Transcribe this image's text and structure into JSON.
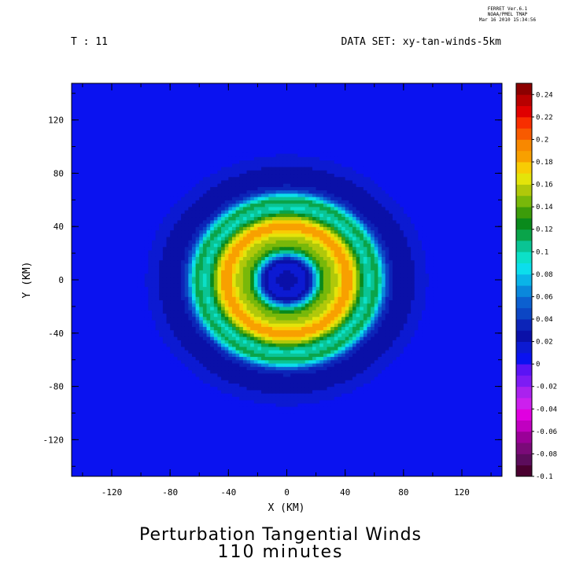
{
  "header": {
    "stamp_line1": "FERRET  Ver.6.1",
    "stamp_line2": "NOAA/PMEL TMAP",
    "stamp_line3": "Mar 16 2010 15:34:56",
    "time_label": "T : 11",
    "dataset_label": "DATA SET: xy-tan-winds-5km"
  },
  "titles": {
    "line1": "Perturbation Tangential Winds",
    "line2": "110 minutes"
  },
  "chart_data": {
    "type": "heatmap",
    "xlabel": "X (KM)",
    "ylabel": "Y (KM)",
    "xlim": [
      -147.5,
      147.5
    ],
    "ylim": [
      -147.5,
      147.5
    ],
    "xticks": [
      -120,
      -80,
      -40,
      0,
      40,
      80,
      120
    ],
    "yticks": [
      -120,
      -80,
      -40,
      0,
      40,
      80,
      120
    ],
    "xtick_labels": [
      "-120",
      "-80",
      "-40",
      "0",
      "40",
      "80",
      "120"
    ],
    "ytick_labels": [
      "-120",
      "-80",
      "-40",
      "0",
      "40",
      "80",
      "120"
    ],
    "grid": false,
    "colorbar": {
      "levels": [
        -0.1,
        -0.09,
        -0.08,
        -0.07,
        -0.06,
        -0.05,
        -0.04,
        -0.03,
        -0.02,
        -0.01,
        0,
        0.01,
        0.02,
        0.03,
        0.04,
        0.05,
        0.06,
        0.07,
        0.08,
        0.09,
        0.1,
        0.11,
        0.12,
        0.13,
        0.14,
        0.15,
        0.16,
        0.17,
        0.18,
        0.19,
        0.2,
        0.21,
        0.22,
        0.23,
        0.24,
        0.25
      ],
      "colors": [
        "#4a0030",
        "#5c0c5c",
        "#7a0a78",
        "#9a0098",
        "#c000c0",
        "#e000e0",
        "#cc20ee",
        "#aa22ee",
        "#7d1cf4",
        "#5a14f5",
        "#0a12f0",
        "#0c1ad2",
        "#0a10a8",
        "#0c24b8",
        "#0c46c4",
        "#0c60d0",
        "#0a88dc",
        "#0ab4e8",
        "#0cdeec",
        "#0ce0c8",
        "#0ac494",
        "#0aa44a",
        "#0a8a1c",
        "#3c9c0a",
        "#78b80a",
        "#b0c80a",
        "#e4e40a",
        "#f8cc04",
        "#f8a000",
        "#f88800",
        "#f85a00",
        "#f82e00",
        "#e00000",
        "#b80000",
        "#8c0000"
      ],
      "tick_labels": [
        "-0.1",
        "-0.08",
        "-0.06",
        "-0.04",
        "-0.02",
        "0",
        "0.02",
        "0.04",
        "0.06",
        "0.08",
        "0.1",
        "0.12",
        "0.14",
        "0.16",
        "0.18",
        "0.2",
        "0.22",
        "0.24"
      ]
    },
    "field": {
      "description_type": "ring",
      "background": 0,
      "rings": [
        {
          "center_radius_km": 0,
          "value": 0.03,
          "width_km": 10
        },
        {
          "center_radius_km": 25,
          "value": 0.09,
          "width_km": 8
        },
        {
          "center_radius_km": 42,
          "value": 0.185,
          "width_km": 14
        },
        {
          "center_radius_km": 62,
          "value": 0.08,
          "width_km": 6
        },
        {
          "center_radius_km": 75,
          "value": 0.025,
          "width_km": 12
        },
        {
          "center_radius_km": 90,
          "value": 0.012,
          "width_km": 12
        }
      ]
    }
  }
}
